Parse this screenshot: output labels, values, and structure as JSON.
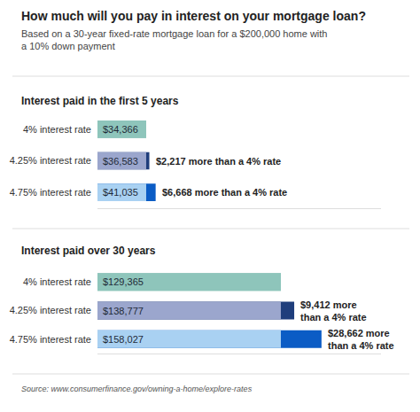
{
  "title": "How much will you pay in interest on your mortgage loan?",
  "subtitle": "Based on a 30-year fixed-rate mortgage loan for a $200,000 home with\na 10% down payment",
  "source": "Source: www.consumerfinance.gov/owning-a-home/explore-rates",
  "chart_data": [
    {
      "type": "bar",
      "orientation": "horizontal",
      "title": "Interest paid in the first 5 years",
      "categories": [
        "4% interest rate",
        "4.25% interest rate",
        "4.75% interest rate"
      ],
      "series": [
        {
          "values": [
            34366,
            36583,
            41035
          ],
          "value_labels": [
            "$34,366",
            "$36,583",
            "$41,035"
          ],
          "colors": [
            "#8ec5bb",
            "#1f3e7c",
            "#0b5cc5"
          ]
        },
        {
          "values": [
            34366,
            34366,
            34366
          ],
          "colors": [
            "#8ec5bb",
            "#9ba6cd",
            "#a9d1f2"
          ]
        }
      ],
      "differences": {
        "values": [
          null,
          2217,
          6668
        ],
        "value_labels": [
          null,
          "$2,217 more than a 4% rate",
          "$6,668 more than a 4% rate"
        ]
      },
      "xlim": [
        0,
        200000
      ],
      "xticks": [],
      "data_labels": true,
      "tick_labels": "y",
      "grid": false
    },
    {
      "type": "bar",
      "orientation": "horizontal",
      "title": "Interest paid over 30 years",
      "categories": [
        "4% interest rate",
        "4.25% interest rate",
        "4.75% interest rate"
      ],
      "series": [
        {
          "values": [
            129365,
            138777,
            158027
          ],
          "value_labels": [
            "$129,365",
            "$138,777",
            "$158,027"
          ],
          "colors": [
            "#8ec5bb",
            "#1f3e7c",
            "#0b5cc5"
          ]
        },
        {
          "values": [
            129365,
            129365,
            129365
          ],
          "colors": [
            "#8ec5bb",
            "#9ba6cd",
            "#a9d1f2"
          ]
        }
      ],
      "differences": {
        "values": [
          null,
          9412,
          28662
        ],
        "value_labels": [
          null,
          "$9,412 more\nthan a 4% rate",
          "$28,662 more\nthan a 4% rate"
        ]
      },
      "xlim": [
        0,
        200000
      ],
      "xticks": [],
      "data_labels": true,
      "tick_labels": "y",
      "grid": false
    }
  ]
}
